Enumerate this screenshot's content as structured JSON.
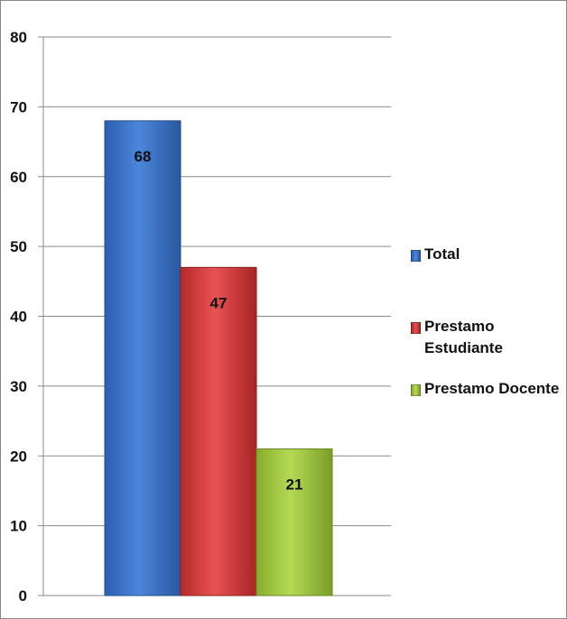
{
  "chart_data": {
    "type": "bar",
    "categories": [
      "Total",
      "Prestamo Estudiante",
      "Prestamo Docente"
    ],
    "values": [
      68,
      47,
      21
    ],
    "data_labels": [
      "68",
      "47",
      "21"
    ],
    "title": "",
    "xlabel": "",
    "ylabel": "",
    "ylim": [
      0,
      80
    ],
    "yticks": [
      "0",
      "10",
      "20",
      "30",
      "40",
      "50",
      "60",
      "70",
      "80"
    ],
    "grid": true,
    "legend_position": "right",
    "colors": [
      "#3a6fc4",
      "#cf3a3a",
      "#9cc43a"
    ]
  },
  "legend": {
    "items": [
      {
        "label": "Total",
        "color": "#3a6fc4"
      },
      {
        "label": "Prestamo Estudiante",
        "color": "#cf3a3a"
      },
      {
        "label": "Prestamo Docente",
        "color": "#9cc43a"
      }
    ]
  }
}
